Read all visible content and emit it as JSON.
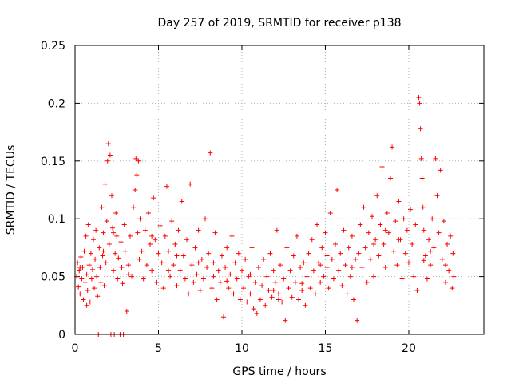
{
  "chart_data": {
    "type": "scatter",
    "title": "Day 257 of 2019, SRMTID for receiver p138",
    "xlabel": "GPS time / hours",
    "ylabel": "SRMTID / TECUs",
    "xlim": [
      0,
      24.5
    ],
    "ylim": [
      0,
      0.25
    ],
    "xticks": [
      0,
      5,
      10,
      15,
      20
    ],
    "xtick_labels": [
      "0",
      "5",
      "10",
      "15",
      "20"
    ],
    "yticks": [
      0,
      0.05,
      0.1,
      0.15,
      0.2,
      0.25
    ],
    "ytick_labels": [
      "0",
      "0.05",
      "0.1",
      "0.15",
      "0.2",
      "0.25"
    ],
    "grid": true,
    "marker": "+",
    "color": "#ff0000",
    "series": [
      {
        "name": "SRMTID",
        "points": [
          [
            0.1,
            0.05
          ],
          [
            0.15,
            0.062
          ],
          [
            0.2,
            0.041
          ],
          [
            0.25,
            0.055
          ],
          [
            0.3,
            0.035
          ],
          [
            0.35,
            0.067
          ],
          [
            0.4,
            0.048
          ],
          [
            0.45,
            0.058
          ],
          [
            0.5,
            0.03
          ],
          [
            0.55,
            0.072
          ],
          [
            0.6,
            0.045
          ],
          [
            0.65,
            0.085
          ],
          [
            0.7,
            0.052
          ],
          [
            0.75,
            0.038
          ],
          [
            0.8,
            0.095
          ],
          [
            0.85,
            0.06
          ],
          [
            0.9,
            0.028
          ],
          [
            0.95,
            0.07
          ],
          [
            1.0,
            0.048
          ],
          [
            1.05,
            0.056
          ],
          [
            1.1,
            0.082
          ],
          [
            1.15,
            0.04
          ],
          [
            1.2,
            0.065
          ],
          [
            1.25,
            0.09
          ],
          [
            1.3,
            0.05
          ],
          [
            1.35,
            0.033
          ],
          [
            1.4,
            0.0
          ],
          [
            1.45,
            0.075
          ],
          [
            1.5,
            0.058
          ],
          [
            1.55,
            0.045
          ],
          [
            1.6,
            0.11
          ],
          [
            1.65,
            0.068
          ],
          [
            1.7,
            0.088
          ],
          [
            1.75,
            0.042
          ],
          [
            1.8,
            0.13
          ],
          [
            1.85,
            0.062
          ],
          [
            1.9,
            0.098
          ],
          [
            1.95,
            0.15
          ],
          [
            2.0,
            0.165
          ],
          [
            2.05,
            0.078
          ],
          [
            2.1,
            0.155
          ],
          [
            2.15,
            0.0
          ],
          [
            2.2,
            0.12
          ],
          [
            2.25,
            0.092
          ],
          [
            2.3,
            0.055
          ],
          [
            2.35,
            0.0
          ],
          [
            2.4,
            0.07
          ],
          [
            2.45,
            0.105
          ],
          [
            2.5,
            0.085
          ],
          [
            2.55,
            0.048
          ],
          [
            2.6,
            0.066
          ],
          [
            2.7,
            0.0
          ],
          [
            2.75,
            0.08
          ],
          [
            2.8,
            0.058
          ],
          [
            2.85,
            0.044
          ],
          [
            2.9,
            0.0
          ],
          [
            2.95,
            0.095
          ],
          [
            3.0,
            0.072
          ],
          [
            3.1,
            0.02
          ],
          [
            3.2,
            0.06
          ],
          [
            3.3,
            0.085
          ],
          [
            3.4,
            0.05
          ],
          [
            3.5,
            0.11
          ],
          [
            3.6,
            0.125
          ],
          [
            3.65,
            0.152
          ],
          [
            3.7,
            0.138
          ],
          [
            3.75,
            0.088
          ],
          [
            3.8,
            0.15
          ],
          [
            3.85,
            0.065
          ],
          [
            3.9,
            0.1
          ],
          [
            4.0,
            0.072
          ],
          [
            4.1,
            0.048
          ],
          [
            4.2,
            0.09
          ],
          [
            4.3,
            0.06
          ],
          [
            4.4,
            0.105
          ],
          [
            4.5,
            0.078
          ],
          [
            4.6,
            0.055
          ],
          [
            4.7,
            0.118
          ],
          [
            4.8,
            0.082
          ],
          [
            4.9,
            0.045
          ],
          [
            5.0,
            0.07
          ],
          [
            5.1,
            0.094
          ],
          [
            5.2,
            0.062
          ],
          [
            5.3,
            0.04
          ],
          [
            5.4,
            0.085
          ],
          [
            5.5,
            0.128
          ],
          [
            5.6,
            0.072
          ],
          [
            5.7,
            0.05
          ],
          [
            5.8,
            0.098
          ],
          [
            5.9,
            0.06
          ],
          [
            6.0,
            0.078
          ],
          [
            6.1,
            0.042
          ],
          [
            6.2,
            0.09
          ],
          [
            6.3,
            0.055
          ],
          [
            6.4,
            0.115
          ],
          [
            6.5,
            0.068
          ],
          [
            6.6,
            0.048
          ],
          [
            6.7,
            0.082
          ],
          [
            6.8,
            0.035
          ],
          [
            6.9,
            0.13
          ],
          [
            7.0,
            0.06
          ],
          [
            7.1,
            0.045
          ],
          [
            7.2,
            0.075
          ],
          [
            7.3,
            0.052
          ],
          [
            7.4,
            0.09
          ],
          [
            7.5,
            0.038
          ],
          [
            7.6,
            0.065
          ],
          [
            7.7,
            0.048
          ],
          [
            7.8,
            0.1
          ],
          [
            7.9,
            0.058
          ],
          [
            8.0,
            0.07
          ],
          [
            8.1,
            0.157
          ],
          [
            8.2,
            0.04
          ],
          [
            8.3,
            0.062
          ],
          [
            8.4,
            0.088
          ],
          [
            8.5,
            0.03
          ],
          [
            8.6,
            0.055
          ],
          [
            8.7,
            0.045
          ],
          [
            8.8,
            0.068
          ],
          [
            8.9,
            0.015
          ],
          [
            9.0,
            0.058
          ],
          [
            9.1,
            0.075
          ],
          [
            9.2,
            0.04
          ],
          [
            9.3,
            0.052
          ],
          [
            9.4,
            0.085
          ],
          [
            9.5,
            0.035
          ],
          [
            9.6,
            0.062
          ],
          [
            9.7,
            0.048
          ],
          [
            9.8,
            0.07
          ],
          [
            9.9,
            0.03
          ],
          [
            10.0,
            0.055
          ],
          [
            10.1,
            0.04
          ],
          [
            10.2,
            0.065
          ],
          [
            10.3,
            0.028
          ],
          [
            10.4,
            0.05
          ],
          [
            10.5,
            0.035
          ],
          [
            10.6,
            0.075
          ],
          [
            10.7,
            0.022
          ],
          [
            10.8,
            0.045
          ],
          [
            10.9,
            0.018
          ],
          [
            11.0,
            0.058
          ],
          [
            11.1,
            0.03
          ],
          [
            11.2,
            0.042
          ],
          [
            11.3,
            0.065
          ],
          [
            11.4,
            0.025
          ],
          [
            11.5,
            0.05
          ],
          [
            11.6,
            0.038
          ],
          [
            11.7,
            0.07
          ],
          [
            11.8,
            0.032
          ],
          [
            11.9,
            0.055
          ],
          [
            12.0,
            0.045
          ],
          [
            12.1,
            0.09
          ],
          [
            12.2,
            0.035
          ],
          [
            12.3,
            0.06
          ],
          [
            12.4,
            0.028
          ],
          [
            12.5,
            0.048
          ],
          [
            12.6,
            0.012
          ],
          [
            12.7,
            0.075
          ],
          [
            12.8,
            0.04
          ],
          [
            12.9,
            0.055
          ],
          [
            13.0,
            0.032
          ],
          [
            13.1,
            0.068
          ],
          [
            13.2,
            0.045
          ],
          [
            13.3,
            0.085
          ],
          [
            13.4,
            0.03
          ],
          [
            13.5,
            0.058
          ],
          [
            13.6,
            0.038
          ],
          [
            13.7,
            0.062
          ],
          [
            13.8,
            0.025
          ],
          [
            13.9,
            0.05
          ],
          [
            14.0,
            0.07
          ],
          [
            14.1,
            0.04
          ],
          [
            14.2,
            0.082
          ],
          [
            14.3,
            0.055
          ],
          [
            14.4,
            0.035
          ],
          [
            14.5,
            0.095
          ],
          [
            14.6,
            0.062
          ],
          [
            14.7,
            0.045
          ],
          [
            14.8,
            0.075
          ],
          [
            14.9,
            0.05
          ],
          [
            15.0,
            0.088
          ],
          [
            15.1,
            0.058
          ],
          [
            15.2,
            0.04
          ],
          [
            15.3,
            0.105
          ],
          [
            15.4,
            0.065
          ],
          [
            15.5,
            0.048
          ],
          [
            15.6,
            0.078
          ],
          [
            15.7,
            0.125
          ],
          [
            15.8,
            0.055
          ],
          [
            15.9,
            0.07
          ],
          [
            16.0,
            0.042
          ],
          [
            16.1,
            0.09
          ],
          [
            16.2,
            0.06
          ],
          [
            16.3,
            0.035
          ],
          [
            16.4,
            0.075
          ],
          [
            16.5,
            0.05
          ],
          [
            16.6,
            0.085
          ],
          [
            16.7,
            0.03
          ],
          [
            16.8,
            0.065
          ],
          [
            16.9,
            0.012
          ],
          [
            17.0,
            0.07
          ],
          [
            17.1,
            0.095
          ],
          [
            17.2,
            0.058
          ],
          [
            17.3,
            0.11
          ],
          [
            17.4,
            0.075
          ],
          [
            17.5,
            0.045
          ],
          [
            17.6,
            0.088
          ],
          [
            17.7,
            0.065
          ],
          [
            17.8,
            0.102
          ],
          [
            17.9,
            0.05
          ],
          [
            18.0,
            0.082
          ],
          [
            18.1,
            0.12
          ],
          [
            18.2,
            0.068
          ],
          [
            18.3,
            0.095
          ],
          [
            18.4,
            0.145
          ],
          [
            18.5,
            0.078
          ],
          [
            18.6,
            0.058
          ],
          [
            18.7,
            0.105
          ],
          [
            18.8,
            0.088
          ],
          [
            18.9,
            0.135
          ],
          [
            19.0,
            0.162
          ],
          [
            19.1,
            0.072
          ],
          [
            19.2,
            0.098
          ],
          [
            19.3,
            0.06
          ],
          [
            19.4,
            0.115
          ],
          [
            19.5,
            0.082
          ],
          [
            19.6,
            0.048
          ],
          [
            19.7,
            0.1
          ],
          [
            19.8,
            0.07
          ],
          [
            19.9,
            0.09
          ],
          [
            20.0,
            0.062
          ],
          [
            20.1,
            0.108
          ],
          [
            20.2,
            0.078
          ],
          [
            20.3,
            0.05
          ],
          [
            20.4,
            0.095
          ],
          [
            20.5,
            0.038
          ],
          [
            20.6,
            0.205
          ],
          [
            20.65,
            0.2
          ],
          [
            20.7,
            0.178
          ],
          [
            20.75,
            0.152
          ],
          [
            20.8,
            0.135
          ],
          [
            20.85,
            0.11
          ],
          [
            20.9,
            0.09
          ],
          [
            21.0,
            0.068
          ],
          [
            21.1,
            0.048
          ],
          [
            21.2,
            0.082
          ],
          [
            21.3,
            0.06
          ],
          [
            21.4,
            0.1
          ],
          [
            21.5,
            0.075
          ],
          [
            21.6,
            0.152
          ],
          [
            21.7,
            0.12
          ],
          [
            21.8,
            0.088
          ],
          [
            21.9,
            0.142
          ],
          [
            22.0,
            0.065
          ],
          [
            22.1,
            0.098
          ],
          [
            22.2,
            0.045
          ],
          [
            22.3,
            0.078
          ],
          [
            22.4,
            0.055
          ],
          [
            22.5,
            0.085
          ],
          [
            22.6,
            0.04
          ],
          [
            22.65,
            0.07
          ],
          [
            22.7,
            0.05
          ],
          [
            0.3,
            0.058
          ],
          [
            1.7,
            0.072
          ],
          [
            3.2,
            0.052
          ],
          [
            4.6,
            0.085
          ],
          [
            6.1,
            0.068
          ],
          [
            7.4,
            0.062
          ],
          [
            9.1,
            0.046
          ],
          [
            10.5,
            0.052
          ],
          [
            11.9,
            0.038
          ],
          [
            13.6,
            0.044
          ],
          [
            15.1,
            0.068
          ],
          [
            16.6,
            0.058
          ],
          [
            17.9,
            0.078
          ],
          [
            19.4,
            0.082
          ],
          [
            20.9,
            0.064
          ],
          [
            22.2,
            0.06
          ],
          [
            0.7,
            0.025
          ],
          [
            2.3,
            0.088
          ],
          [
            5.6,
            0.055
          ],
          [
            8.3,
            0.05
          ],
          [
            12.2,
            0.03
          ],
          [
            14.7,
            0.06
          ],
          [
            18.6,
            0.09
          ],
          [
            21.3,
            0.072
          ]
        ]
      }
    ]
  }
}
